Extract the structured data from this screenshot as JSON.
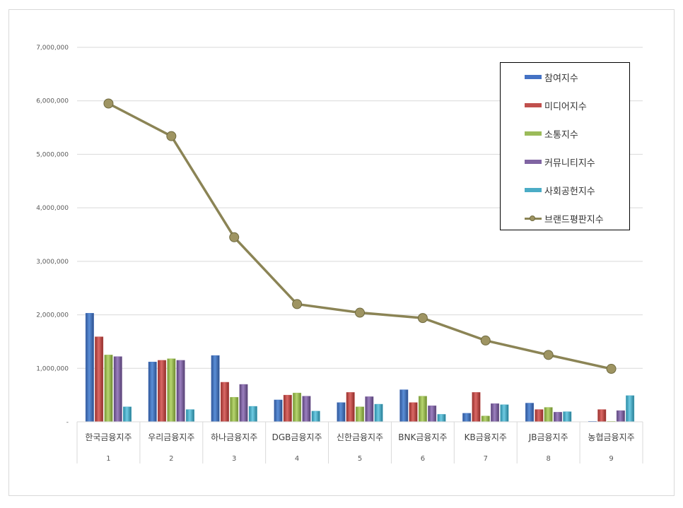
{
  "chart_data": {
    "type": "bar",
    "categories": [
      "한국금융지주",
      "우리금융지주",
      "하나금융지주",
      "DGB금융지주",
      "신한금융지주",
      "BNK금융지주",
      "KB금융지주",
      "JB금융지주",
      "농협금융지주"
    ],
    "rank_labels": [
      "1",
      "2",
      "3",
      "4",
      "5",
      "6",
      "7",
      "8",
      "9"
    ],
    "ylim": [
      0,
      7000000
    ],
    "yticks": [
      0,
      1000000,
      2000000,
      3000000,
      4000000,
      5000000,
      6000000,
      7000000
    ],
    "ytick_labels": [
      "-",
      "1,000,000",
      "2,000,000",
      "3,000,000",
      "4,000,000",
      "5,000,000",
      "6,000,000",
      "7,000,000"
    ],
    "grid": true,
    "legend_position": "top-right",
    "series": [
      {
        "name": "참여지수",
        "kind": "bar",
        "color": "#4472c4",
        "values": [
          2030000,
          1120000,
          1240000,
          410000,
          360000,
          600000,
          160000,
          350000,
          10000
        ]
      },
      {
        "name": "미디어지수",
        "kind": "bar",
        "color": "#c0504d",
        "values": [
          1590000,
          1150000,
          740000,
          500000,
          550000,
          360000,
          550000,
          230000,
          230000
        ]
      },
      {
        "name": "소통지수",
        "kind": "bar",
        "color": "#9bbb59",
        "values": [
          1250000,
          1180000,
          460000,
          540000,
          280000,
          480000,
          110000,
          270000,
          10000
        ]
      },
      {
        "name": "커뮤니티지수",
        "kind": "bar",
        "color": "#8064a2",
        "values": [
          1220000,
          1150000,
          700000,
          480000,
          470000,
          300000,
          340000,
          180000,
          210000
        ]
      },
      {
        "name": "사회공헌지수",
        "kind": "bar",
        "color": "#4bacc6",
        "values": [
          280000,
          230000,
          290000,
          200000,
          330000,
          140000,
          320000,
          190000,
          490000
        ]
      },
      {
        "name": "브랜드평판지수",
        "kind": "line",
        "color": "#8b8455",
        "values": [
          5950000,
          5340000,
          3450000,
          2200000,
          2040000,
          1940000,
          1520000,
          1250000,
          990000
        ]
      }
    ]
  }
}
